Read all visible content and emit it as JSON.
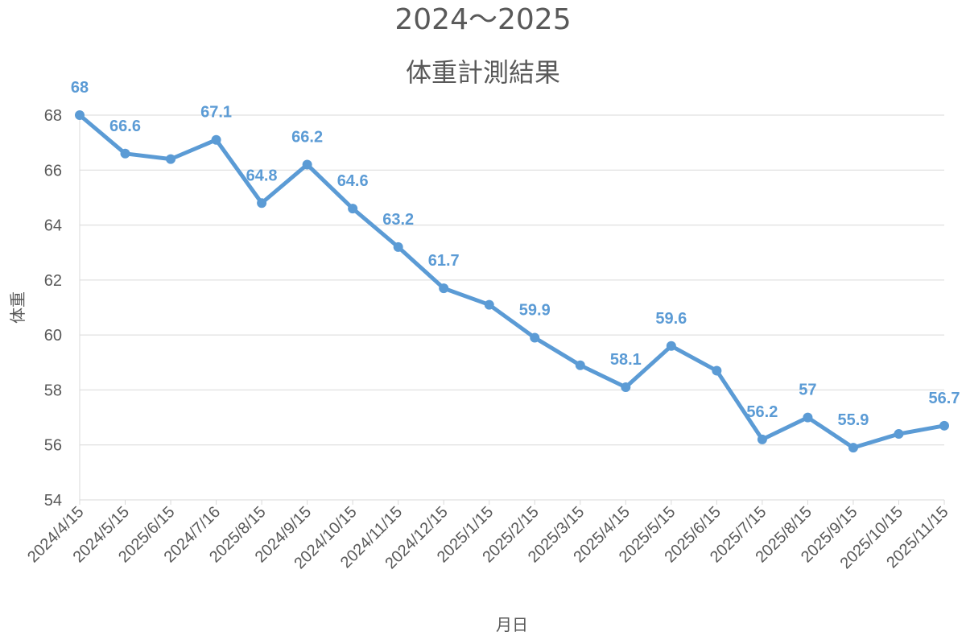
{
  "chart_data": {
    "type": "line",
    "title": "2024〜2025",
    "subtitle": "体重計測結果",
    "xlabel": "月日",
    "ylabel": "体重",
    "ylim": [
      54,
      68
    ],
    "yticks": [
      54,
      56,
      58,
      60,
      62,
      64,
      66,
      68
    ],
    "grid": true,
    "categories": [
      "2024/4/15",
      "2024/5/15",
      "2025/6/15",
      "2024/7/16",
      "2025/8/15",
      "2024/9/15",
      "2024/10/15",
      "2024/11/15",
      "2024/12/15",
      "2025/1/15",
      "2025/2/15",
      "2025/3/15",
      "2025/4/15",
      "2025/5/15",
      "2025/6/15",
      "2025/7/15",
      "2025/8/15",
      "2025/9/15",
      "2025/10/15",
      "2025/11/15"
    ],
    "series": [
      {
        "values": [
          68,
          66.6,
          66.4,
          67.1,
          64.8,
          66.2,
          64.6,
          63.2,
          61.7,
          61.1,
          59.9,
          58.9,
          58.1,
          59.6,
          58.7,
          56.2,
          57,
          55.9,
          56.4,
          56.7
        ],
        "data_labels": [
          "68",
          "66.6",
          null,
          "67.1",
          "64.8",
          "66.2",
          "64.6",
          "63.2",
          "61.7",
          null,
          "59.9",
          null,
          "58.1",
          "59.6",
          null,
          "56.2",
          "57",
          "55.9",
          null,
          "56.7"
        ],
        "color": "#5b9bd5"
      }
    ]
  }
}
